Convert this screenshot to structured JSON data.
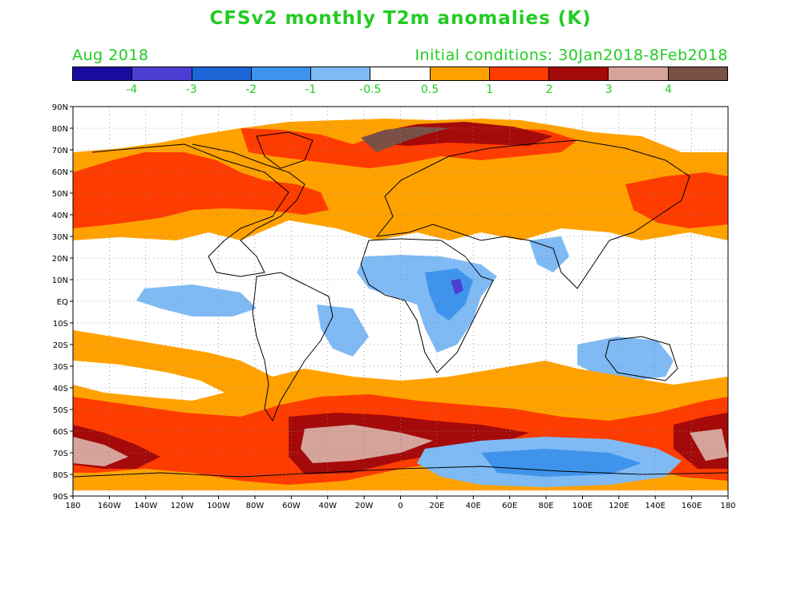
{
  "title": "CFSv2 monthly T2m anomalies (K)",
  "valid_month": "Aug 2018",
  "initial_conditions": "Initial conditions: 30Jan2018-8Feb2018",
  "colorbar": {
    "colors": [
      "#1a0c9e",
      "#4b3fd2",
      "#1d64d6",
      "#3e94ec",
      "#7fbaf5",
      "#ffffff",
      "#ffa200",
      "#ff3c00",
      "#a50a0a",
      "#d6a39a",
      "#7a5046"
    ],
    "labels": [
      "-4",
      "-3",
      "-2",
      "-1",
      "-0.5",
      "0.5",
      "1",
      "2",
      "3",
      "4"
    ]
  },
  "map": {
    "lat_labels": [
      "90N",
      "80N",
      "70N",
      "60N",
      "50N",
      "40N",
      "30N",
      "20N",
      "10N",
      "EQ",
      "10S",
      "20S",
      "30S",
      "40S",
      "50S",
      "60S",
      "70S",
      "80S",
      "90S"
    ],
    "lon_labels": [
      "180",
      "160W",
      "140W",
      "120W",
      "100W",
      "80W",
      "60W",
      "40W",
      "20W",
      "0",
      "20E",
      "40E",
      "60E",
      "80E",
      "100E",
      "120E",
      "140E",
      "160E",
      "180"
    ]
  }
}
